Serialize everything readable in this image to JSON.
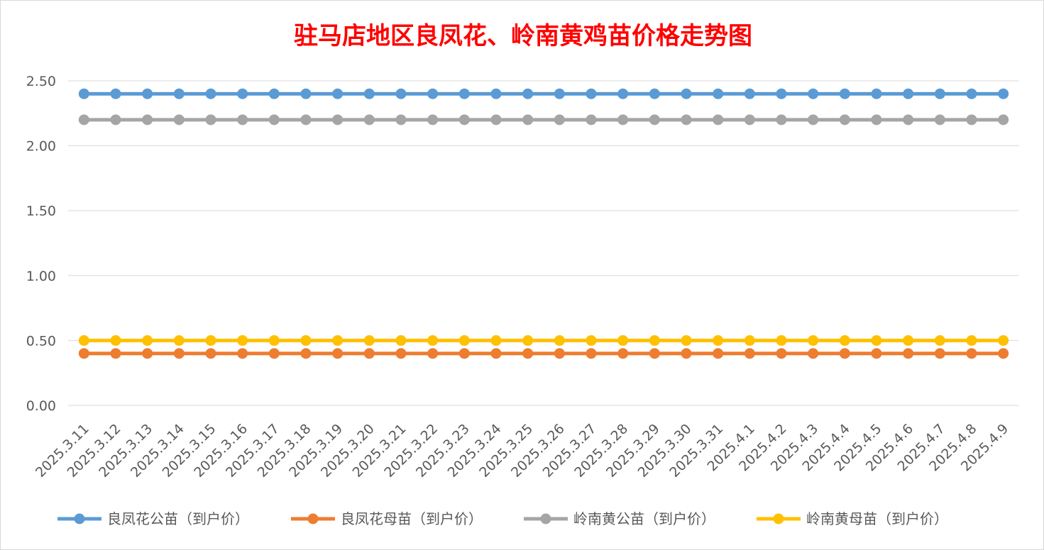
{
  "chart_data": {
    "type": "line",
    "title": "驻马店地区良凤花、岭南黄鸡苗价格走势图",
    "categories": [
      "2025.3.11",
      "2025.3.12",
      "2025.3.13",
      "2025.3.14",
      "2025.3.15",
      "2025.3.16",
      "2025.3.17",
      "2025.3.18",
      "2025.3.19",
      "2025.3.20",
      "2025.3.21",
      "2025.3.22",
      "2025.3.23",
      "2025.3.24",
      "2025.3.25",
      "2025.3.26",
      "2025.3.27",
      "2025.3.28",
      "2025.3.29",
      "2025.3.30",
      "2025.3.31",
      "2025.4.1",
      "2025.4.2",
      "2025.4.3",
      "2025.4.4",
      "2025.4.5",
      "2025.4.6",
      "2025.4.7",
      "2025.4.8",
      "2025.4.9"
    ],
    "y_ticks": [
      "0.00",
      "0.50",
      "1.00",
      "1.50",
      "2.00",
      "2.50"
    ],
    "ylim": [
      0,
      2.5
    ],
    "grid": true,
    "legend_position": "bottom",
    "series": [
      {
        "name": "良凤花公苗（到户价）",
        "color": "#5b9bd5",
        "values": [
          2.4,
          2.4,
          2.4,
          2.4,
          2.4,
          2.4,
          2.4,
          2.4,
          2.4,
          2.4,
          2.4,
          2.4,
          2.4,
          2.4,
          2.4,
          2.4,
          2.4,
          2.4,
          2.4,
          2.4,
          2.4,
          2.4,
          2.4,
          2.4,
          2.4,
          2.4,
          2.4,
          2.4,
          2.4,
          2.4
        ]
      },
      {
        "name": "良凤花母苗（到户价）",
        "color": "#ed7d31",
        "values": [
          0.4,
          0.4,
          0.4,
          0.4,
          0.4,
          0.4,
          0.4,
          0.4,
          0.4,
          0.4,
          0.4,
          0.4,
          0.4,
          0.4,
          0.4,
          0.4,
          0.4,
          0.4,
          0.4,
          0.4,
          0.4,
          0.4,
          0.4,
          0.4,
          0.4,
          0.4,
          0.4,
          0.4,
          0.4,
          0.4
        ]
      },
      {
        "name": "岭南黄公苗（到户价）",
        "color": "#a5a5a5",
        "values": [
          2.2,
          2.2,
          2.2,
          2.2,
          2.2,
          2.2,
          2.2,
          2.2,
          2.2,
          2.2,
          2.2,
          2.2,
          2.2,
          2.2,
          2.2,
          2.2,
          2.2,
          2.2,
          2.2,
          2.2,
          2.2,
          2.2,
          2.2,
          2.2,
          2.2,
          2.2,
          2.2,
          2.2,
          2.2,
          2.2
        ]
      },
      {
        "name": "岭南黄母苗（到户价）",
        "color": "#ffc000",
        "values": [
          0.5,
          0.5,
          0.5,
          0.5,
          0.5,
          0.5,
          0.5,
          0.5,
          0.5,
          0.5,
          0.5,
          0.5,
          0.5,
          0.5,
          0.5,
          0.5,
          0.5,
          0.5,
          0.5,
          0.5,
          0.5,
          0.5,
          0.5,
          0.5,
          0.5,
          0.5,
          0.5,
          0.5,
          0.5,
          0.5
        ]
      }
    ]
  }
}
